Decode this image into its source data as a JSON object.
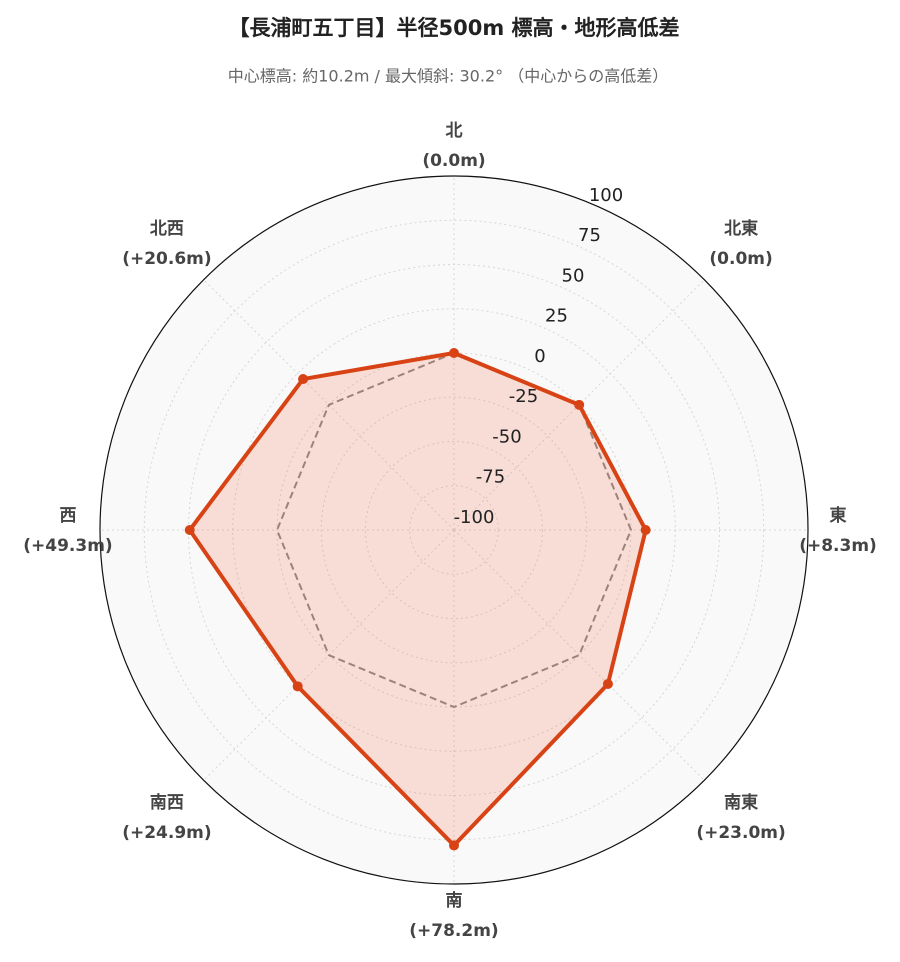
{
  "chart_data": {
    "type": "radar",
    "title": "【長浦町五丁目】半径500m 標高・地形高低差",
    "subtitle": "中心標高: 約10.2m / 最大傾斜: 30.2° （中心からの高低差）",
    "categories": [
      "北",
      "北東",
      "東",
      "南東",
      "南",
      "南西",
      "西",
      "北西"
    ],
    "values": [
      0.0,
      0.0,
      8.3,
      23.0,
      78.2,
      24.9,
      49.3,
      20.6
    ],
    "value_labels": [
      "(0.0m)",
      "(0.0m)",
      "(+8.3m)",
      "(+23.0m)",
      "(+78.2m)",
      "(+24.9m)",
      "(+49.3m)",
      "(+20.6m)"
    ],
    "color": "#d84315",
    "baseline": 0,
    "ylim": [
      -100,
      100
    ],
    "yticks": [
      -100,
      -75,
      -50,
      -25,
      0,
      25,
      50,
      75,
      100
    ],
    "grid": true
  }
}
